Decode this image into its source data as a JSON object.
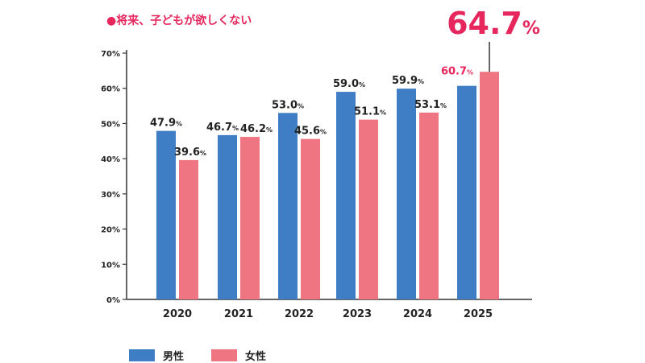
{
  "chart_data": {
    "type": "bar",
    "title": "●将来、子どもが欲しくない",
    "categories": [
      "2020",
      "2021",
      "2022",
      "2023",
      "2024",
      "2025"
    ],
    "series": [
      {
        "name": "男性",
        "values": [
          47.9,
          46.7,
          53.0,
          59.0,
          59.9,
          60.7
        ]
      },
      {
        "name": "女性",
        "values": [
          39.6,
          46.2,
          45.6,
          51.1,
          53.1,
          64.7
        ]
      }
    ],
    "value_labels": {
      "男性": [
        "47.9",
        "46.7",
        "53.0",
        "59.0",
        "59.9",
        "60.7"
      ],
      "女性": [
        "39.6",
        "46.2",
        "45.6",
        "51.1",
        "53.1",
        "64.7"
      ]
    },
    "y_ticks": [
      "0%",
      "10%",
      "20%",
      "30%",
      "40%",
      "50%",
      "60%",
      "70%"
    ],
    "ylim": [
      0,
      70
    ],
    "unit": "%",
    "highlight_label": "64.7",
    "legend_position": "bottom-left"
  },
  "colors": {
    "male": "#3f7ec4",
    "female": "#f07583",
    "highlight": "#e6265c",
    "text": "#222222",
    "axis": "#333333"
  }
}
